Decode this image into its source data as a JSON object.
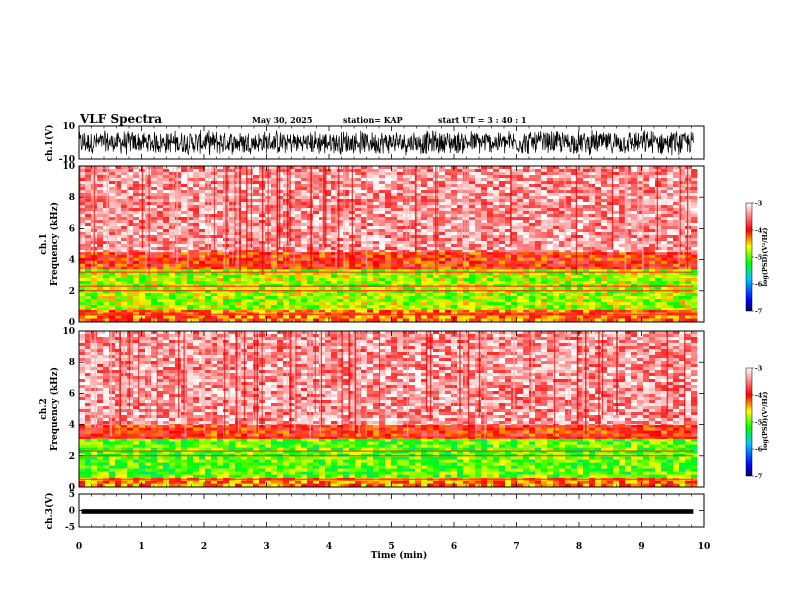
{
  "chart_data": {
    "type": "heatmap",
    "title": "VLF Spectra",
    "date": "May 30, 2025",
    "station": "station= KAP",
    "start_ut": "start  UT  =   3  : 40 : 1",
    "x_axis": {
      "label": "Time  (min)",
      "range": [
        0,
        10
      ],
      "ticks": [
        "0",
        "1",
        "2",
        "3",
        "4",
        "5",
        "6",
        "7",
        "8",
        "9",
        "10"
      ]
    },
    "waveform_ch1": {
      "label": "ch.1(V)",
      "ylim": [
        -10,
        10
      ],
      "ticks": [
        "10",
        "-10"
      ],
      "amplitude_range": [
        -8,
        8
      ]
    },
    "spectrogram_ch1": {
      "label_channel": "ch.1",
      "label_freq": "Frequency  (kHz)",
      "ylim": [
        0,
        10
      ],
      "ticks": [
        "0",
        "2",
        "4",
        "6",
        "8",
        "10"
      ],
      "bands_khz": [
        {
          "from": 0,
          "to": 0.8,
          "log_psd": -4.2
        },
        {
          "from": 0.8,
          "to": 3.4,
          "log_psd": -4.8
        },
        {
          "from": 3.4,
          "to": 4.5,
          "log_psd": -4.0
        },
        {
          "from": 4.5,
          "to": 10,
          "log_psd": -3.4
        }
      ]
    },
    "spectrogram_ch2": {
      "label_channel": "ch.2",
      "label_freq": "Frequency  (kHz)",
      "ylim": [
        0,
        10
      ],
      "ticks": [
        "0",
        "2",
        "4",
        "6",
        "8",
        "10"
      ],
      "bands_khz": [
        {
          "from": 0,
          "to": 0.6,
          "log_psd": -4.3
        },
        {
          "from": 0.6,
          "to": 3.1,
          "log_psd": -5.0
        },
        {
          "from": 3.1,
          "to": 4.0,
          "log_psd": -4.0
        },
        {
          "from": 4.0,
          "to": 10,
          "log_psd": -3.4
        }
      ]
    },
    "waveform_ch3": {
      "label": "ch.3(V)",
      "ylim": [
        -5,
        5
      ],
      "ticks": [
        "5",
        "0",
        "-5"
      ],
      "amplitude_range": [
        -1,
        0.4
      ]
    },
    "colorbar": {
      "label": "log(PSD)(V²/Hz)",
      "range": [
        -7,
        -3
      ],
      "ticks": [
        "-3",
        "-4",
        "-5",
        "-6",
        "-7"
      ],
      "colors": [
        "#000080",
        "#0000ff",
        "#00ffff",
        "#00ff00",
        "#ffff00",
        "#ff0000",
        "#ffffff"
      ]
    }
  }
}
